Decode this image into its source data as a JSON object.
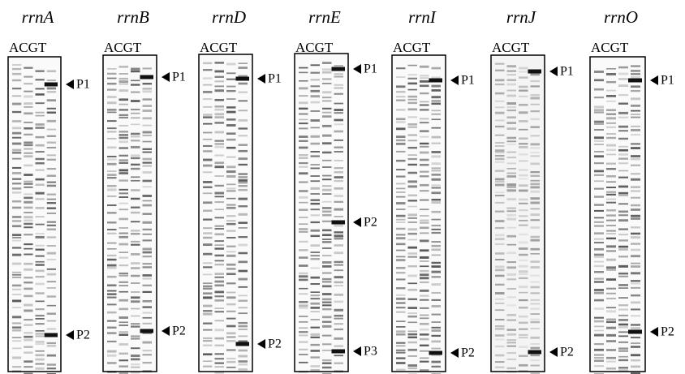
{
  "panels": [
    {
      "title": "rrnA",
      "lanes": "ACGT",
      "markers": [
        "P1",
        "P2"
      ]
    },
    {
      "title": "rrnB",
      "lanes": "ACGT",
      "markers": [
        "P1",
        "P2"
      ]
    },
    {
      "title": "rrnD",
      "lanes": "ACGT",
      "markers": [
        "P1",
        "P2"
      ]
    },
    {
      "title": "rrnE",
      "lanes": "ACGT",
      "markers": [
        "P1",
        "P2",
        "P3"
      ]
    },
    {
      "title": "rrnI",
      "lanes": "ACGT",
      "markers": [
        "P1",
        "P2"
      ]
    },
    {
      "title": "rrnJ",
      "lanes": "ACGT",
      "markers": [
        "P1",
        "P2"
      ]
    },
    {
      "title": "rrnO",
      "lanes": "ACGT",
      "markers": [
        "P1",
        "P2"
      ]
    }
  ]
}
